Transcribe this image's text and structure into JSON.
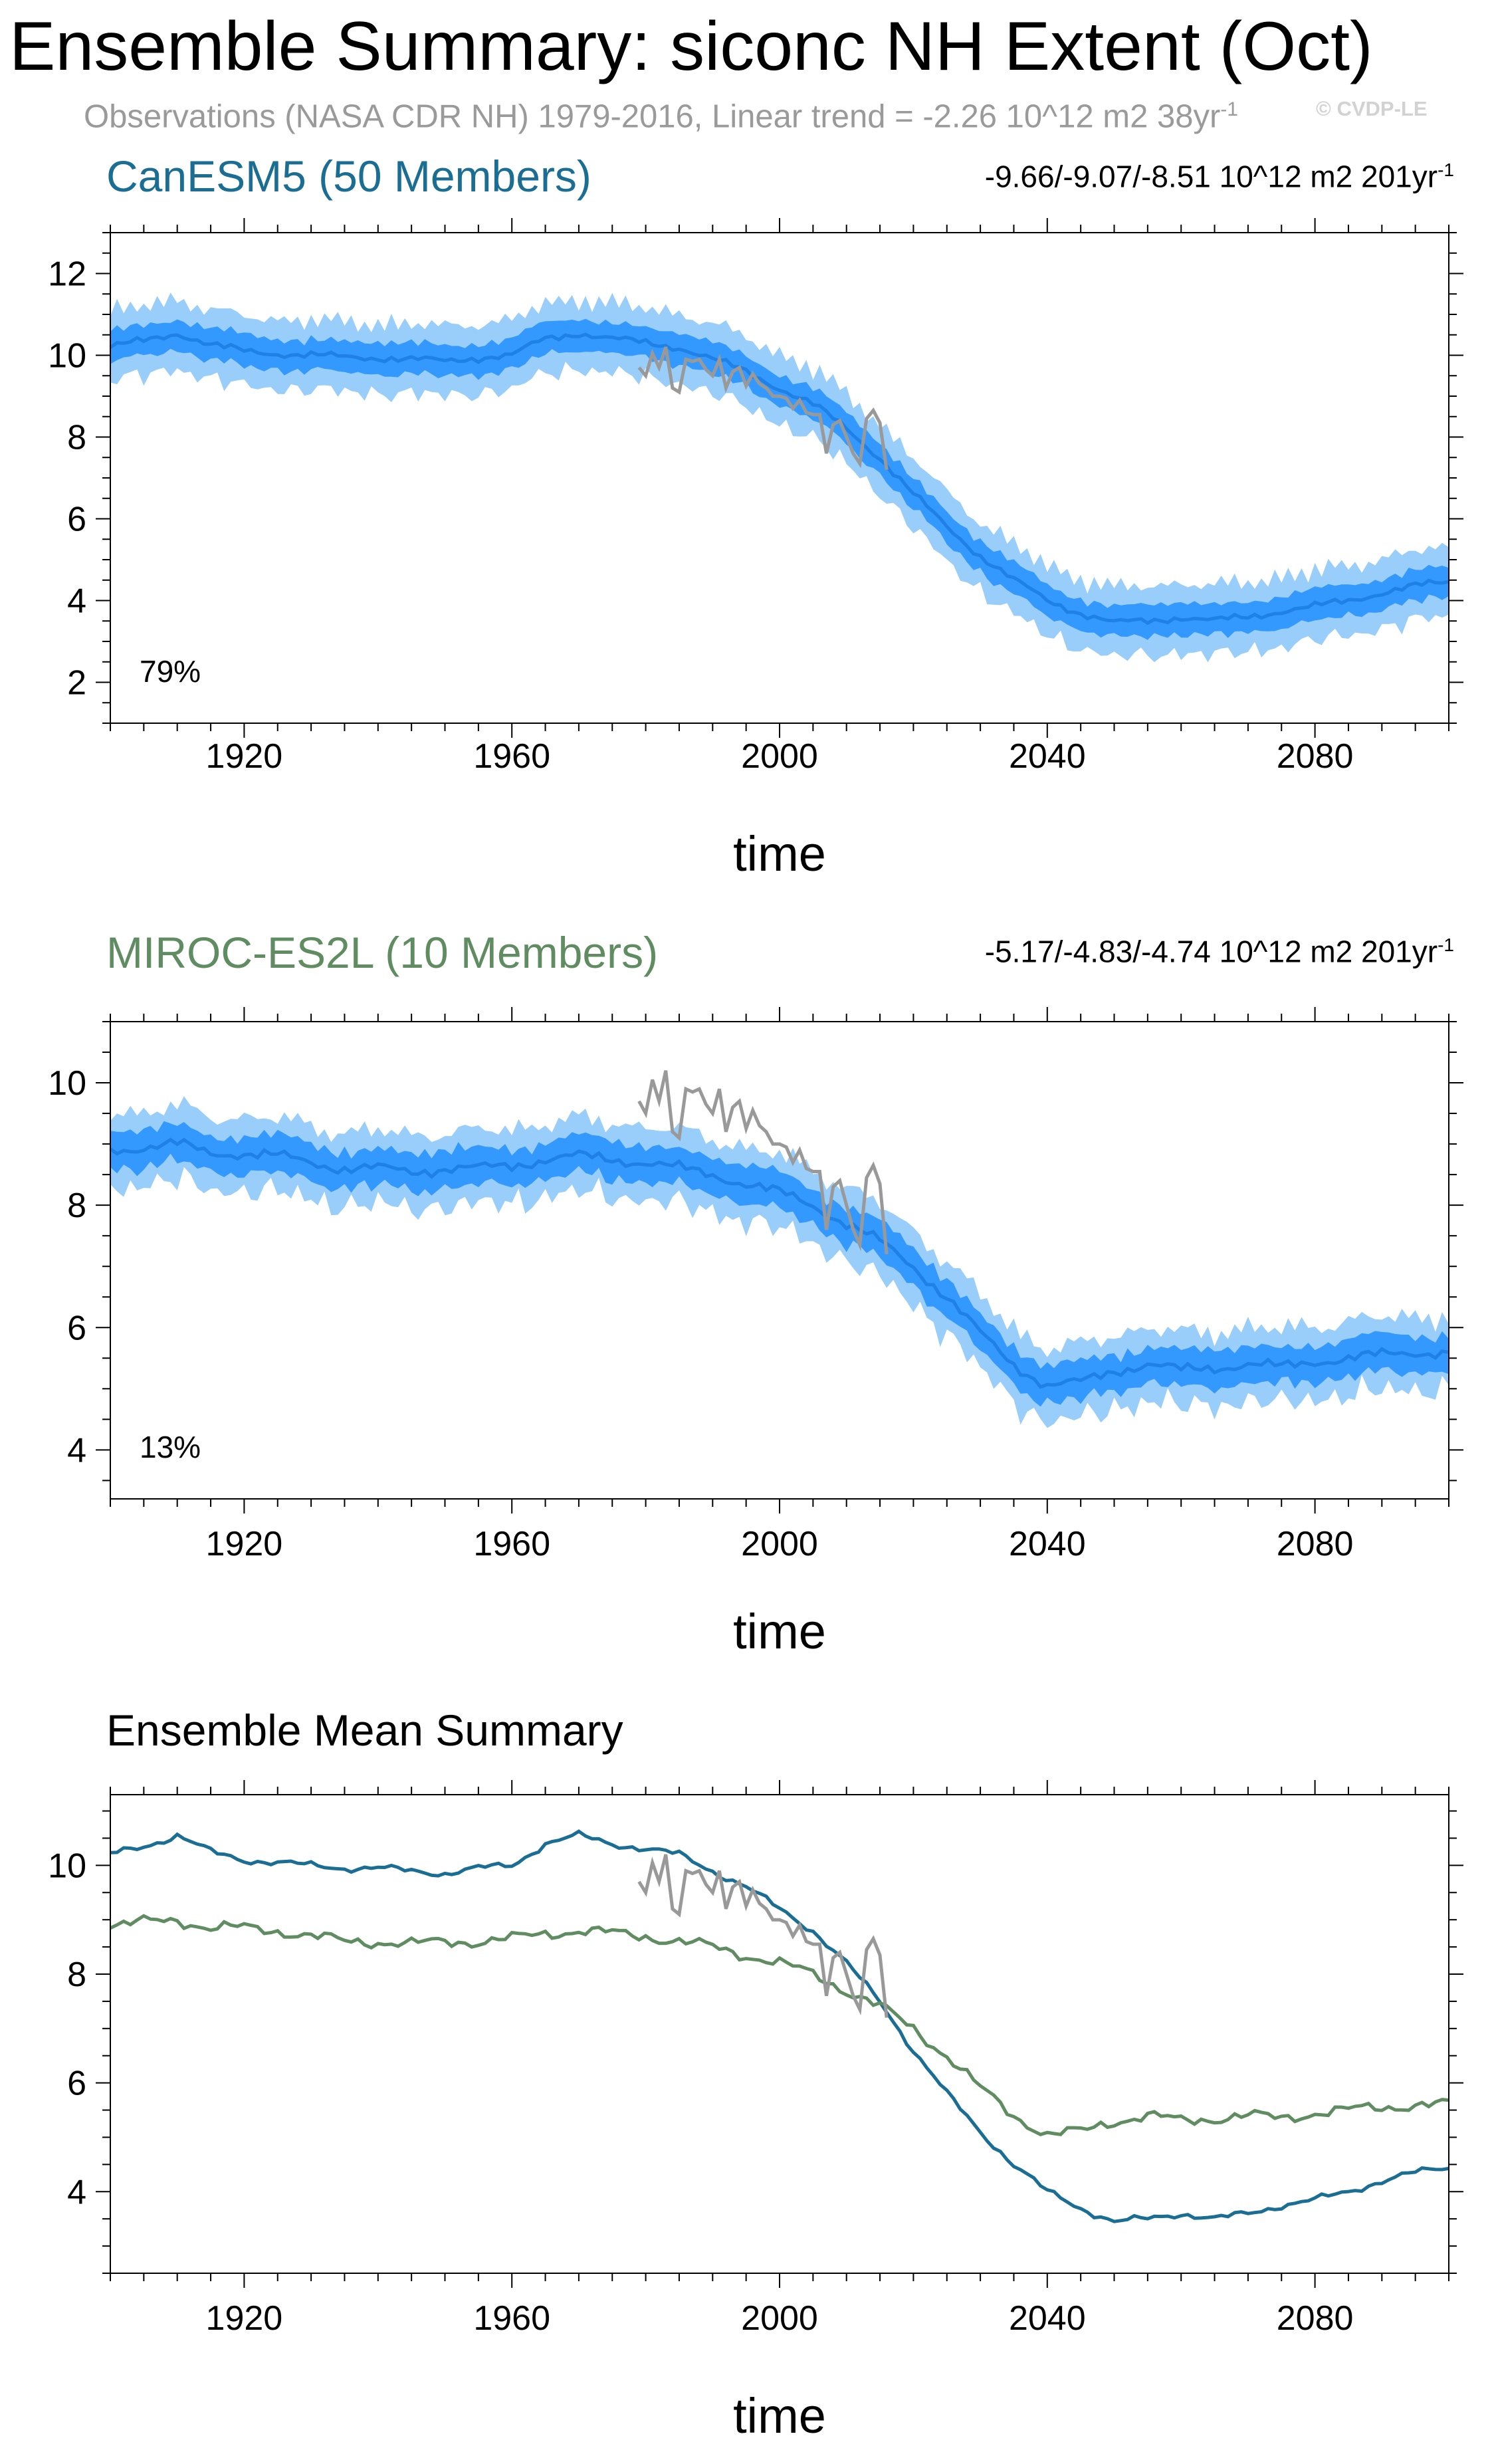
{
  "title": "Ensemble Summary: siconc NH Extent (Oct)",
  "observations_text": "Observations (NASA CDR NH) 1979-2016, Linear trend = -2.26 10^12 m2 38yr",
  "observations_sup": "-1",
  "watermark": "© CVDP-LE",
  "xlabel": "time",
  "colors": {
    "canesm5": "#1a6e93",
    "miroc": "#5f8c60",
    "obs": "#999999",
    "band_outer": "#99cdfa",
    "band_inner": "#3399ff",
    "mean_line": "#1f81e6"
  },
  "chart_data": [
    {
      "type": "area",
      "title": "CanESM5 (50 Members)",
      "trend_text": "-9.66/-9.07/-8.51 10^12 m2 201yr",
      "trend_sup": "-1",
      "percent_label": "79%",
      "xlim": [
        1900,
        2100
      ],
      "ylim": [
        1,
        13
      ],
      "xticks": [
        1920,
        1960,
        2000,
        2040,
        2080
      ],
      "yticks": [
        2,
        4,
        6,
        8,
        10,
        12
      ],
      "xlabel": "time",
      "mean_key": [
        [
          1900,
          10.2
        ],
        [
          1905,
          10.35
        ],
        [
          1910,
          10.55
        ],
        [
          1915,
          10.25
        ],
        [
          1920,
          10.1
        ],
        [
          1925,
          10.05
        ],
        [
          1930,
          10.0
        ],
        [
          1935,
          9.95
        ],
        [
          1940,
          9.95
        ],
        [
          1945,
          9.9
        ],
        [
          1950,
          9.85
        ],
        [
          1955,
          9.95
        ],
        [
          1960,
          10.0
        ],
        [
          1965,
          10.4
        ],
        [
          1970,
          10.55
        ],
        [
          1975,
          10.4
        ],
        [
          1980,
          10.3
        ],
        [
          1985,
          10.2
        ],
        [
          1990,
          9.9
        ],
        [
          1995,
          9.6
        ],
        [
          2000,
          9.2
        ],
        [
          2005,
          8.8
        ],
        [
          2010,
          8.2
        ],
        [
          2015,
          7.5
        ],
        [
          2020,
          6.6
        ],
        [
          2025,
          5.8
        ],
        [
          2030,
          5.1
        ],
        [
          2035,
          4.5
        ],
        [
          2040,
          4.0
        ],
        [
          2045,
          3.7
        ],
        [
          2050,
          3.45
        ],
        [
          2055,
          3.5
        ],
        [
          2060,
          3.6
        ],
        [
          2065,
          3.5
        ],
        [
          2070,
          3.6
        ],
        [
          2075,
          3.75
        ],
        [
          2080,
          3.85
        ],
        [
          2085,
          4.0
        ],
        [
          2090,
          4.2
        ],
        [
          2095,
          4.35
        ],
        [
          2100,
          4.45
        ]
      ],
      "band_inner_halfwidth": 0.38,
      "band_outer_halfwidth": 0.85,
      "obs_key": [
        [
          1979,
          9.7
        ],
        [
          1980,
          9.5
        ],
        [
          1981,
          10.05
        ],
        [
          1982,
          9.7
        ],
        [
          1983,
          10.2
        ],
        [
          1984,
          9.2
        ],
        [
          1985,
          9.1
        ],
        [
          1986,
          9.9
        ],
        [
          1987,
          9.85
        ],
        [
          1988,
          9.9
        ],
        [
          1989,
          9.65
        ],
        [
          1990,
          9.5
        ],
        [
          1991,
          9.9
        ],
        [
          1992,
          9.2
        ],
        [
          1993,
          9.6
        ],
        [
          1994,
          9.7
        ],
        [
          1995,
          9.25
        ],
        [
          1996,
          9.55
        ],
        [
          1997,
          9.3
        ],
        [
          1998,
          9.2
        ],
        [
          1999,
          9.0
        ],
        [
          2000,
          9.0
        ],
        [
          2001,
          8.95
        ],
        [
          2002,
          8.7
        ],
        [
          2003,
          8.9
        ],
        [
          2004,
          8.6
        ],
        [
          2005,
          8.55
        ],
        [
          2006,
          8.55
        ],
        [
          2007,
          7.6
        ],
        [
          2008,
          8.3
        ],
        [
          2009,
          8.4
        ],
        [
          2010,
          8.0
        ],
        [
          2011,
          7.6
        ],
        [
          2012,
          7.35
        ],
        [
          2013,
          8.45
        ],
        [
          2014,
          8.65
        ],
        [
          2015,
          8.35
        ],
        [
          2016,
          7.2
        ]
      ]
    },
    {
      "type": "area",
      "title": "MIROC-ES2L (10 Members)",
      "trend_text": "-5.17/-4.83/-4.74 10^12 m2 201yr",
      "trend_sup": "-1",
      "percent_label": "13%",
      "xlim": [
        1900,
        2100
      ],
      "ylim": [
        3.2,
        11.0
      ],
      "xticks": [
        1920,
        1960,
        2000,
        2040,
        2080
      ],
      "yticks": [
        4,
        6,
        8,
        10
      ],
      "xlabel": "time",
      "mean_key": [
        [
          1900,
          8.9
        ],
        [
          1905,
          8.95
        ],
        [
          1910,
          9.0
        ],
        [
          1915,
          8.85
        ],
        [
          1920,
          8.85
        ],
        [
          1925,
          8.8
        ],
        [
          1930,
          8.7
        ],
        [
          1935,
          8.6
        ],
        [
          1940,
          8.6
        ],
        [
          1945,
          8.55
        ],
        [
          1950,
          8.6
        ],
        [
          1955,
          8.6
        ],
        [
          1960,
          8.65
        ],
        [
          1965,
          8.75
        ],
        [
          1970,
          8.8
        ],
        [
          1975,
          8.75
        ],
        [
          1980,
          8.7
        ],
        [
          1985,
          8.6
        ],
        [
          1990,
          8.5
        ],
        [
          1995,
          8.35
        ],
        [
          2000,
          8.2
        ],
        [
          2005,
          8.0
        ],
        [
          2010,
          7.7
        ],
        [
          2015,
          7.4
        ],
        [
          2020,
          7.0
        ],
        [
          2025,
          6.5
        ],
        [
          2030,
          5.9
        ],
        [
          2035,
          5.4
        ],
        [
          2040,
          5.05
        ],
        [
          2045,
          5.1
        ],
        [
          2050,
          5.3
        ],
        [
          2055,
          5.4
        ],
        [
          2060,
          5.3
        ],
        [
          2065,
          5.35
        ],
        [
          2070,
          5.4
        ],
        [
          2075,
          5.35
        ],
        [
          2080,
          5.45
        ],
        [
          2085,
          5.5
        ],
        [
          2090,
          5.55
        ],
        [
          2095,
          5.6
        ],
        [
          2100,
          5.6
        ]
      ],
      "band_inner_halfwidth": 0.3,
      "band_outer_halfwidth": 0.6,
      "obs_key": [
        [
          1979,
          9.7
        ],
        [
          1980,
          9.5
        ],
        [
          1981,
          10.05
        ],
        [
          1982,
          9.7
        ],
        [
          1983,
          10.2
        ],
        [
          1984,
          9.2
        ],
        [
          1985,
          9.1
        ],
        [
          1986,
          9.9
        ],
        [
          1987,
          9.85
        ],
        [
          1988,
          9.9
        ],
        [
          1989,
          9.65
        ],
        [
          1990,
          9.5
        ],
        [
          1991,
          9.9
        ],
        [
          1992,
          9.2
        ],
        [
          1993,
          9.6
        ],
        [
          1994,
          9.7
        ],
        [
          1995,
          9.25
        ],
        [
          1996,
          9.55
        ],
        [
          1997,
          9.3
        ],
        [
          1998,
          9.2
        ],
        [
          1999,
          9.0
        ],
        [
          2000,
          9.0
        ],
        [
          2001,
          8.95
        ],
        [
          2002,
          8.7
        ],
        [
          2003,
          8.9
        ],
        [
          2004,
          8.6
        ],
        [
          2005,
          8.55
        ],
        [
          2006,
          8.55
        ],
        [
          2007,
          7.6
        ],
        [
          2008,
          8.3
        ],
        [
          2009,
          8.4
        ],
        [
          2010,
          8.0
        ],
        [
          2011,
          7.6
        ],
        [
          2012,
          7.35
        ],
        [
          2013,
          8.45
        ],
        [
          2014,
          8.65
        ],
        [
          2015,
          8.35
        ],
        [
          2016,
          7.2
        ]
      ]
    },
    {
      "type": "line",
      "title": "Ensemble Mean Summary",
      "xlim": [
        1900,
        2100
      ],
      "ylim": [
        2.5,
        11.3
      ],
      "xticks": [
        1920,
        1960,
        2000,
        2040,
        2080
      ],
      "yticks": [
        4,
        6,
        8,
        10
      ],
      "xlabel": "time",
      "series": [
        {
          "name": "CanESM5",
          "key": [
            [
              1900,
              10.2
            ],
            [
              1905,
              10.35
            ],
            [
              1910,
              10.55
            ],
            [
              1915,
              10.25
            ],
            [
              1920,
              10.1
            ],
            [
              1925,
              10.05
            ],
            [
              1930,
              10.0
            ],
            [
              1935,
              9.95
            ],
            [
              1940,
              9.95
            ],
            [
              1945,
              9.9
            ],
            [
              1950,
              9.85
            ],
            [
              1955,
              9.95
            ],
            [
              1960,
              10.0
            ],
            [
              1965,
              10.4
            ],
            [
              1970,
              10.55
            ],
            [
              1975,
              10.4
            ],
            [
              1980,
              10.3
            ],
            [
              1985,
              10.2
            ],
            [
              1990,
              9.9
            ],
            [
              1995,
              9.6
            ],
            [
              2000,
              9.2
            ],
            [
              2005,
              8.8
            ],
            [
              2010,
              8.2
            ],
            [
              2015,
              7.5
            ],
            [
              2020,
              6.6
            ],
            [
              2025,
              5.8
            ],
            [
              2030,
              5.1
            ],
            [
              2035,
              4.5
            ],
            [
              2040,
              4.0
            ],
            [
              2045,
              3.7
            ],
            [
              2050,
              3.45
            ],
            [
              2055,
              3.5
            ],
            [
              2060,
              3.6
            ],
            [
              2065,
              3.5
            ],
            [
              2070,
              3.6
            ],
            [
              2075,
              3.75
            ],
            [
              2080,
              3.85
            ],
            [
              2085,
              4.0
            ],
            [
              2090,
              4.2
            ],
            [
              2095,
              4.35
            ],
            [
              2100,
              4.45
            ]
          ]
        },
        {
          "name": "MIROC-ES2L",
          "key": [
            [
              1900,
              8.9
            ],
            [
              1905,
              8.95
            ],
            [
              1910,
              9.0
            ],
            [
              1915,
              8.85
            ],
            [
              1920,
              8.85
            ],
            [
              1925,
              8.8
            ],
            [
              1930,
              8.7
            ],
            [
              1935,
              8.6
            ],
            [
              1940,
              8.6
            ],
            [
              1945,
              8.55
            ],
            [
              1950,
              8.6
            ],
            [
              1955,
              8.6
            ],
            [
              1960,
              8.65
            ],
            [
              1965,
              8.75
            ],
            [
              1970,
              8.8
            ],
            [
              1975,
              8.75
            ],
            [
              1980,
              8.7
            ],
            [
              1985,
              8.6
            ],
            [
              1990,
              8.5
            ],
            [
              1995,
              8.35
            ],
            [
              2000,
              8.2
            ],
            [
              2005,
              8.0
            ],
            [
              2010,
              7.7
            ],
            [
              2015,
              7.4
            ],
            [
              2020,
              7.0
            ],
            [
              2025,
              6.5
            ],
            [
              2030,
              5.9
            ],
            [
              2035,
              5.4
            ],
            [
              2040,
              5.05
            ],
            [
              2045,
              5.1
            ],
            [
              2050,
              5.3
            ],
            [
              2055,
              5.4
            ],
            [
              2060,
              5.3
            ],
            [
              2065,
              5.35
            ],
            [
              2070,
              5.4
            ],
            [
              2075,
              5.35
            ],
            [
              2080,
              5.45
            ],
            [
              2085,
              5.5
            ],
            [
              2090,
              5.55
            ],
            [
              2095,
              5.6
            ],
            [
              2100,
              5.6
            ]
          ]
        },
        {
          "name": "Observations",
          "key": [
            [
              1979,
              9.7
            ],
            [
              1980,
              9.5
            ],
            [
              1981,
              10.05
            ],
            [
              1982,
              9.7
            ],
            [
              1983,
              10.2
            ],
            [
              1984,
              9.2
            ],
            [
              1985,
              9.1
            ],
            [
              1986,
              9.9
            ],
            [
              1987,
              9.85
            ],
            [
              1988,
              9.9
            ],
            [
              1989,
              9.65
            ],
            [
              1990,
              9.5
            ],
            [
              1991,
              9.9
            ],
            [
              1992,
              9.2
            ],
            [
              1993,
              9.6
            ],
            [
              1994,
              9.7
            ],
            [
              1995,
              9.25
            ],
            [
              1996,
              9.55
            ],
            [
              1997,
              9.3
            ],
            [
              1998,
              9.2
            ],
            [
              1999,
              9.0
            ],
            [
              2000,
              9.0
            ],
            [
              2001,
              8.95
            ],
            [
              2002,
              8.7
            ],
            [
              2003,
              8.9
            ],
            [
              2004,
              8.6
            ],
            [
              2005,
              8.55
            ],
            [
              2006,
              8.55
            ],
            [
              2007,
              7.6
            ],
            [
              2008,
              8.3
            ],
            [
              2009,
              8.4
            ],
            [
              2010,
              8.0
            ],
            [
              2011,
              7.6
            ],
            [
              2012,
              7.35
            ],
            [
              2013,
              8.45
            ],
            [
              2014,
              8.65
            ],
            [
              2015,
              8.35
            ],
            [
              2016,
              7.2
            ]
          ]
        }
      ]
    }
  ]
}
